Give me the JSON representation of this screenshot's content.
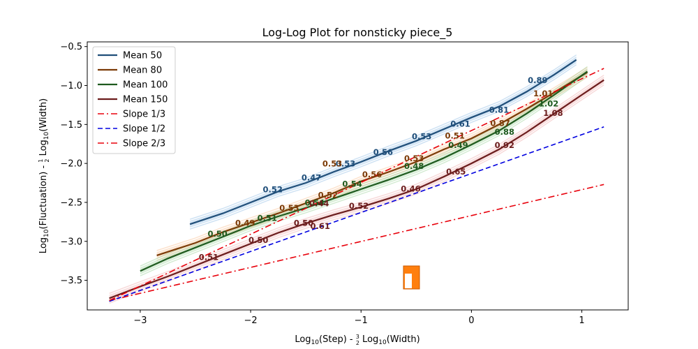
{
  "chart_data": {
    "type": "line",
    "title": "Log-Log Plot for nonsticky piece_5",
    "xlabel": {
      "main": "Log",
      "sub": "10",
      "mid": "(Step) - ",
      "frac_num": "3",
      "frac_den": "2",
      "rest": " Log",
      "sub2": "10",
      "end": "(Width)"
    },
    "ylabel": {
      "main": "Log",
      "sub": "10",
      "mid": "(Fluctuation) - ",
      "frac_num": "1",
      "frac_den": "2",
      "rest": " Log",
      "sub2": "10",
      "end": "(Width)"
    },
    "xlim": [
      -3.48,
      1.42
    ],
    "ylim": [
      -3.88,
      -0.44
    ],
    "xticks": [
      -3,
      -2,
      -1,
      0,
      1
    ],
    "xtick_labels": [
      "−3",
      "−2",
      "−1",
      "0",
      "1"
    ],
    "yticks": [
      -3.5,
      -3.0,
      -2.5,
      -2.0,
      -1.5,
      -1.0,
      -0.5
    ],
    "ytick_labels": [
      "−3.5",
      "−3.0",
      "−2.5",
      "−2.0",
      "−1.5",
      "−1.0",
      "−0.5"
    ],
    "grid": false,
    "legend_position": "top-left",
    "series": [
      {
        "name": "Mean 50",
        "color": "#1f4e79",
        "style": "solid",
        "x": [
          -2.55,
          -2.25,
          -2.0,
          -1.75,
          -1.5,
          -1.25,
          -1.0,
          -0.75,
          -0.5,
          -0.25,
          0.0,
          0.25,
          0.5,
          0.75,
          0.95
        ],
        "y": [
          -2.78,
          -2.64,
          -2.5,
          -2.36,
          -2.25,
          -2.11,
          -1.98,
          -1.84,
          -1.71,
          -1.56,
          -1.41,
          -1.27,
          -1.08,
          -0.86,
          -0.67
        ]
      },
      {
        "name": "Mean 80",
        "color": "#7b3a06",
        "style": "solid",
        "x": [
          -2.85,
          -2.5,
          -2.25,
          -2.0,
          -1.75,
          -1.5,
          -1.25,
          -1.0,
          -0.75,
          -0.5,
          -0.25,
          0.0,
          0.25,
          0.5,
          0.75,
          1.05
        ],
        "y": [
          -3.18,
          -3.02,
          -2.88,
          -2.76,
          -2.64,
          -2.51,
          -2.38,
          -2.23,
          -2.11,
          -1.98,
          -1.82,
          -1.68,
          -1.5,
          -1.3,
          -1.09,
          -0.83
        ]
      },
      {
        "name": "Mean 100",
        "color": "#1e5a1e",
        "style": "solid",
        "x": [
          -3.0,
          -2.75,
          -2.5,
          -2.25,
          -2.0,
          -1.75,
          -1.5,
          -1.25,
          -1.0,
          -0.75,
          -0.5,
          -0.25,
          0.0,
          0.25,
          0.5,
          0.75,
          1.05
        ],
        "y": [
          -3.38,
          -3.22,
          -3.08,
          -2.94,
          -2.8,
          -2.68,
          -2.57,
          -2.45,
          -2.33,
          -2.21,
          -2.08,
          -1.93,
          -1.76,
          -1.58,
          -1.36,
          -1.12,
          -0.82
        ]
      },
      {
        "name": "Mean 150",
        "color": "#6b1c1c",
        "style": "solid",
        "x": [
          -3.28,
          -3.0,
          -2.75,
          -2.5,
          -2.25,
          -2.0,
          -1.75,
          -1.5,
          -1.25,
          -1.0,
          -0.75,
          -0.5,
          -0.25,
          0.0,
          0.25,
          0.5,
          0.75,
          1.0,
          1.2
        ],
        "y": [
          -3.73,
          -3.58,
          -3.45,
          -3.31,
          -3.17,
          -3.03,
          -2.89,
          -2.77,
          -2.66,
          -2.56,
          -2.45,
          -2.33,
          -2.17,
          -2.0,
          -1.82,
          -1.6,
          -1.36,
          -1.12,
          -0.93
        ]
      },
      {
        "name": "Slope 1/3",
        "color": "#e8000b",
        "style": "dashdot",
        "x": [
          -3.28,
          1.2
        ],
        "y": [
          -3.76,
          -2.27
        ]
      },
      {
        "name": "Slope 1/2",
        "color": "#0000e0",
        "style": "dashed",
        "x": [
          -3.28,
          1.2
        ],
        "y": [
          -3.77,
          -1.53
        ]
      },
      {
        "name": "Slope 2/3",
        "color": "#e8000b",
        "style": "dashdot",
        "x": [
          -3.28,
          1.2
        ],
        "y": [
          -3.76,
          -0.78
        ]
      }
    ],
    "slope_labels": [
      {
        "text": "0.52",
        "x": -1.8,
        "y": -2.37,
        "color": "#1f4e79"
      },
      {
        "text": "0.47",
        "x": -1.45,
        "y": -2.22,
        "color": "#1f4e79"
      },
      {
        "text": "0.53",
        "x": -1.14,
        "y": -2.04,
        "color": "#1f4e79"
      },
      {
        "text": "0.56",
        "x": -0.8,
        "y": -1.89,
        "color": "#1f4e79"
      },
      {
        "text": "0.53",
        "x": -0.45,
        "y": -1.69,
        "color": "#1f4e79"
      },
      {
        "text": "0.61",
        "x": -0.1,
        "y": -1.53,
        "color": "#1f4e79"
      },
      {
        "text": "0.81",
        "x": 0.25,
        "y": -1.35,
        "color": "#1f4e79"
      },
      {
        "text": "0.89",
        "x": 0.6,
        "y": -0.97,
        "color": "#1f4e79"
      },
      {
        "text": "0.49",
        "x": -2.05,
        "y": -2.8,
        "color": "#7b3a06"
      },
      {
        "text": "0.53",
        "x": -1.65,
        "y": -2.61,
        "color": "#7b3a06"
      },
      {
        "text": "0.52",
        "x": -1.3,
        "y": -2.44,
        "color": "#7b3a06"
      },
      {
        "text": "0.53",
        "x": -1.26,
        "y": -2.04,
        "color": "#7b3a06"
      },
      {
        "text": "0.56",
        "x": -0.9,
        "y": -2.18,
        "color": "#7b3a06"
      },
      {
        "text": "0.53",
        "x": -0.52,
        "y": -1.97,
        "color": "#7b3a06"
      },
      {
        "text": "0.51",
        "x": -0.15,
        "y": -1.68,
        "color": "#7b3a06"
      },
      {
        "text": "0.87",
        "x": 0.26,
        "y": -1.52,
        "color": "#7b3a06"
      },
      {
        "text": "1.01",
        "x": 0.65,
        "y": -1.14,
        "color": "#7b3a06"
      },
      {
        "text": "0.50",
        "x": -2.3,
        "y": -2.94,
        "color": "#1e5a1e"
      },
      {
        "text": "0.51",
        "x": -1.85,
        "y": -2.74,
        "color": "#1e5a1e"
      },
      {
        "text": "0.54",
        "x": -1.42,
        "y": -2.54,
        "color": "#1e5a1e"
      },
      {
        "text": "0.54",
        "x": -1.08,
        "y": -2.3,
        "color": "#1e5a1e"
      },
      {
        "text": "0.48",
        "x": -0.52,
        "y": -2.07,
        "color": "#1e5a1e"
      },
      {
        "text": "0.49",
        "x": -0.12,
        "y": -1.8,
        "color": "#1e5a1e"
      },
      {
        "text": "0.88",
        "x": 0.3,
        "y": -1.63,
        "color": "#1e5a1e"
      },
      {
        "text": "1.02",
        "x": 0.7,
        "y": -1.27,
        "color": "#1e5a1e"
      },
      {
        "text": "0.51",
        "x": -2.38,
        "y": -3.24,
        "color": "#6b1c1c"
      },
      {
        "text": "0.50",
        "x": -1.93,
        "y": -3.02,
        "color": "#6b1c1c"
      },
      {
        "text": "0.50",
        "x": -1.52,
        "y": -2.8,
        "color": "#6b1c1c"
      },
      {
        "text": "0.61",
        "x": -1.37,
        "y": -2.84,
        "color": "#6b1c1c"
      },
      {
        "text": "0.44",
        "x": -1.38,
        "y": -2.55,
        "color": "#6b1c1c"
      },
      {
        "text": "0.52",
        "x": -1.02,
        "y": -2.58,
        "color": "#6b1c1c"
      },
      {
        "text": "0.46",
        "x": -0.55,
        "y": -2.36,
        "color": "#6b1c1c"
      },
      {
        "text": "0.65",
        "x": -0.14,
        "y": -2.14,
        "color": "#6b1c1c"
      },
      {
        "text": "0.92",
        "x": 0.3,
        "y": -1.8,
        "color": "#6b1c1c"
      },
      {
        "text": "1.08",
        "x": 0.74,
        "y": -1.39,
        "color": "#6b1c1c"
      }
    ]
  },
  "band_colors": {
    "Mean 50": "#6fa8dc",
    "Mean 80": "#f6a86b",
    "Mean 100": "#7fc77a",
    "Mean 150": "#e79191"
  },
  "legend": [
    {
      "label": "Mean 50",
      "color": "#1f4e79",
      "style": "solid"
    },
    {
      "label": "Mean 80",
      "color": "#7b3a06",
      "style": "solid"
    },
    {
      "label": "Mean 100",
      "color": "#1e5a1e",
      "style": "solid"
    },
    {
      "label": "Mean 150",
      "color": "#6b1c1c",
      "style": "solid"
    },
    {
      "label": "Slope 1/3",
      "color": "#e8000b",
      "style": "dashdot"
    },
    {
      "label": "Slope 1/2",
      "color": "#0000e0",
      "style": "dashed"
    },
    {
      "label": "Slope 2/3",
      "color": "#e8000b",
      "style": "dashdot"
    }
  ],
  "logo_colors": {
    "fill": "#ff7f0e",
    "edge": "#c85a00",
    "inner": "#ffffff"
  }
}
